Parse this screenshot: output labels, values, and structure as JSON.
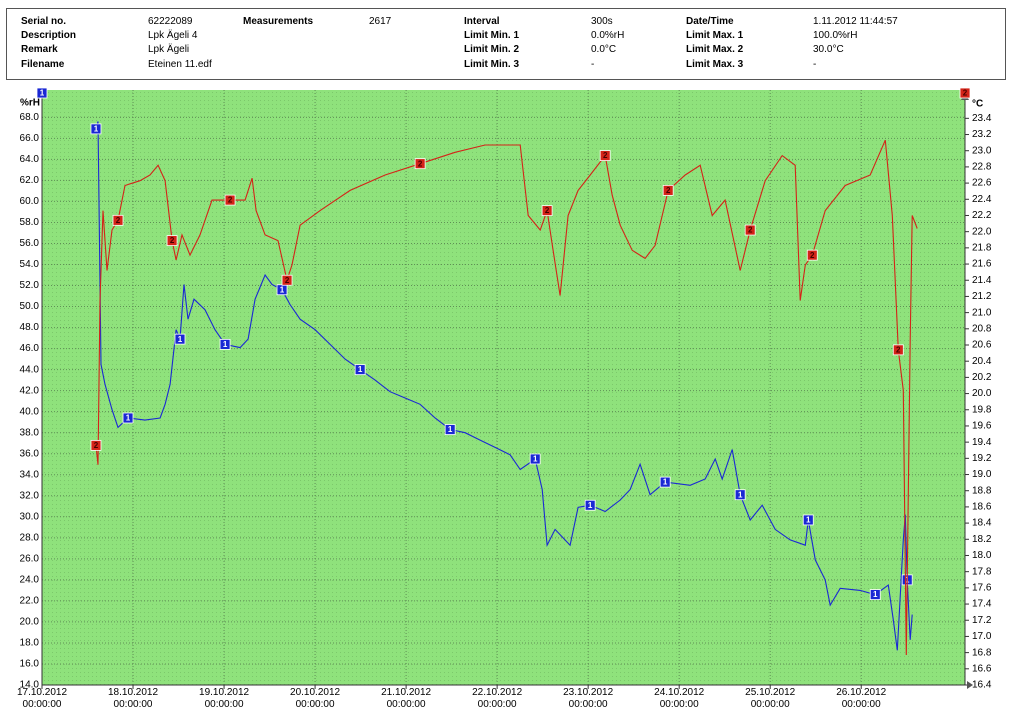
{
  "header": {
    "columns": [
      [
        {
          "label": "Serial no.",
          "value": "62222089"
        },
        {
          "label": "Description",
          "value": "Lpk Ägeli 4"
        },
        {
          "label": "Remark",
          "value": "Lpk Ägeli"
        },
        {
          "label": "Filename",
          "value": "Eteinen 11.edf"
        }
      ],
      [
        {
          "label": "Measurements",
          "value": "2617"
        }
      ],
      [
        {
          "label": "Interval",
          "value": "300s"
        },
        {
          "label": "Limit Min. 1",
          "value": "0.0%rH"
        },
        {
          "label": "Limit Min. 2",
          "value": "0.0°C"
        },
        {
          "label": "Limit Min. 3",
          "value": "-"
        }
      ],
      [
        {
          "label": "Date/Time",
          "value": "1.11.2012 11:44:57"
        },
        {
          "label": "Limit Max. 1",
          "value": "100.0%rH"
        },
        {
          "label": "Limit Max. 2",
          "value": "30.0°C"
        },
        {
          "label": "Limit Max. 3",
          "value": "-"
        }
      ]
    ]
  },
  "chart_data": {
    "type": "line",
    "ylabel": "%rH",
    "y2label": "°C",
    "grid": true,
    "xlim": [
      0,
      10.14
    ],
    "ylim": [
      14,
      70.6
    ],
    "y2lim": [
      16.4,
      23.75
    ],
    "xticks": [
      {
        "value": 0,
        "label": "17.10.2012 00:00:00"
      },
      {
        "value": 1,
        "label": "18.10.2012 00:00:00"
      },
      {
        "value": 2,
        "label": "19.10.2012 00:00:00"
      },
      {
        "value": 3,
        "label": "20.10.2012 00:00:00"
      },
      {
        "value": 4,
        "label": "21.10.2012 00:00:00"
      },
      {
        "value": 5,
        "label": "22.10.2012 00:00:00"
      },
      {
        "value": 6,
        "label": "23.10.2012 00:00:00"
      },
      {
        "value": 7,
        "label": "24.10.2012 00:00:00"
      },
      {
        "value": 8,
        "label": "25.10.2012 00:00:00"
      },
      {
        "value": 9,
        "label": "26.10.2012 00:00:00"
      }
    ],
    "yticks": [
      {
        "value": 14,
        "label": "14.0"
      },
      {
        "value": 16,
        "label": "16.0"
      },
      {
        "value": 18,
        "label": "18.0"
      },
      {
        "value": 20,
        "label": "20.0"
      },
      {
        "value": 22,
        "label": "22.0"
      },
      {
        "value": 24,
        "label": "24.0"
      },
      {
        "value": 26,
        "label": "26.0"
      },
      {
        "value": 28,
        "label": "28.0"
      },
      {
        "value": 30,
        "label": "30.0"
      },
      {
        "value": 32,
        "label": "32.0"
      },
      {
        "value": 34,
        "label": "34.0"
      },
      {
        "value": 36,
        "label": "36.0"
      },
      {
        "value": 38,
        "label": "38.0"
      },
      {
        "value": 40,
        "label": "40.0"
      },
      {
        "value": 42,
        "label": "42.0"
      },
      {
        "value": 44,
        "label": "44.0"
      },
      {
        "value": 46,
        "label": "46.0"
      },
      {
        "value": 48,
        "label": "48.0"
      },
      {
        "value": 50,
        "label": "50.0"
      },
      {
        "value": 52,
        "label": "52.0"
      },
      {
        "value": 54,
        "label": "54.0"
      },
      {
        "value": 56,
        "label": "56.0"
      },
      {
        "value": 58,
        "label": "58.0"
      },
      {
        "value": 60,
        "label": "60.0"
      },
      {
        "value": 62,
        "label": "62.0"
      },
      {
        "value": 64,
        "label": "64.0"
      },
      {
        "value": 66,
        "label": "66.0"
      },
      {
        "value": 68,
        "label": "68.0"
      }
    ],
    "y2ticks": [
      16.4,
      16.6,
      16.8,
      {
        "value": 17,
        "label": "17.0"
      },
      17.2,
      17.4,
      17.6,
      17.8,
      {
        "value": 18,
        "label": "18.0"
      },
      18.2,
      18.4,
      18.6,
      18.8,
      {
        "value": 19,
        "label": "19.0"
      },
      19.2,
      19.4,
      19.6,
      19.8,
      {
        "value": 20,
        "label": "20.0"
      },
      20.2,
      20.4,
      20.6,
      20.8,
      {
        "value": 21,
        "label": "21.0"
      },
      21.2,
      21.4,
      21.6,
      21.8,
      {
        "value": 22,
        "label": "22.0"
      },
      22.2,
      22.4,
      22.6,
      22.8,
      {
        "value": 23,
        "label": "23.0"
      },
      23.2,
      23.4
    ],
    "series": [
      {
        "name": "1",
        "color": "#1a28d4",
        "x": [
          0.593,
          0.615,
          0.648,
          0.692,
          0.769,
          0.835,
          0.945,
          1.132,
          1.297,
          1.352,
          1.407,
          1.473,
          1.516,
          1.56,
          1.604,
          1.67,
          1.791,
          1.901,
          2.011,
          2.176,
          2.264,
          2.341,
          2.451,
          2.527,
          2.637,
          2.725,
          2.835,
          3.0,
          3.165,
          3.33,
          3.495,
          3.659,
          3.824,
          3.989,
          4.154,
          4.319,
          4.484,
          4.648,
          4.813,
          4.978,
          5.143,
          5.253,
          5.418,
          5.495,
          5.549,
          5.637,
          5.802,
          5.89,
          6.022,
          6.187,
          6.352,
          6.462,
          6.571,
          6.681,
          6.846,
          7.121,
          7.286,
          7.396,
          7.473,
          7.582,
          7.67,
          7.78,
          7.912,
          8.055,
          8.22,
          8.385,
          8.418,
          8.495,
          8.604,
          8.659,
          8.769,
          8.989,
          9.154,
          9.297,
          9.352,
          9.396,
          9.462,
          9.484,
          9.505,
          9.538,
          9.56
        ],
        "values": [
          66.9,
          67.6,
          44.5,
          42.6,
          40.2,
          38.5,
          39.4,
          39.2,
          39.4,
          40.7,
          42.6,
          47.8,
          46.9,
          52.1,
          48.8,
          50.7,
          49.7,
          47.8,
          46.4,
          46.1,
          46.9,
          50.7,
          53.0,
          52.1,
          51.6,
          50.2,
          48.8,
          47.8,
          46.4,
          45.0,
          44.0,
          43.0,
          41.9,
          41.3,
          40.7,
          39.4,
          38.3,
          38.0,
          37.3,
          36.6,
          35.9,
          34.5,
          35.5,
          32.6,
          27.3,
          28.8,
          27.3,
          30.9,
          31.1,
          30.5,
          31.6,
          32.6,
          35.0,
          32.1,
          33.3,
          33.0,
          33.6,
          35.5,
          33.6,
          36.4,
          32.1,
          29.7,
          31.1,
          28.8,
          27.8,
          27.3,
          29.7,
          25.9,
          24.0,
          21.6,
          23.2,
          23.0,
          22.6,
          23.5,
          20.2,
          17.3,
          27.8,
          30.2,
          24.0,
          18.3,
          20.7
        ]
      },
      {
        "name": "2",
        "color": "#d42318",
        "axis": "y2",
        "x": [
          0.593,
          0.615,
          0.637,
          0.67,
          0.714,
          0.769,
          0.835,
          0.912,
          1.077,
          1.187,
          1.275,
          1.352,
          1.429,
          1.473,
          1.538,
          1.626,
          1.736,
          1.868,
          2.066,
          2.231,
          2.308,
          2.352,
          2.451,
          2.593,
          2.692,
          2.747,
          2.835,
          3.055,
          3.385,
          3.769,
          4.154,
          4.538,
          4.868,
          5.253,
          5.341,
          5.473,
          5.549,
          5.615,
          5.692,
          5.78,
          5.89,
          6.022,
          6.187,
          6.264,
          6.352,
          6.484,
          6.626,
          6.736,
          6.879,
          7.066,
          7.231,
          7.363,
          7.505,
          7.67,
          7.78,
          7.945,
          8.132,
          8.275,
          8.33,
          8.385,
          8.462,
          8.604,
          8.824,
          9.099,
          9.264,
          9.341,
          9.407,
          9.462,
          9.495,
          9.538,
          9.56,
          9.615
        ],
        "values": [
          19.36,
          19.12,
          21.15,
          22.26,
          21.52,
          22.02,
          22.14,
          22.57,
          22.63,
          22.7,
          22.82,
          22.63,
          21.89,
          21.65,
          21.96,
          21.71,
          21.96,
          22.39,
          22.39,
          22.39,
          22.66,
          22.26,
          21.96,
          21.89,
          21.4,
          21.59,
          22.08,
          22.26,
          22.51,
          22.7,
          22.84,
          22.98,
          23.07,
          23.07,
          22.2,
          22.02,
          22.26,
          21.77,
          21.21,
          22.2,
          22.51,
          22.7,
          22.94,
          22.45,
          22.08,
          21.77,
          21.67,
          21.83,
          22.51,
          22.7,
          22.82,
          22.2,
          22.39,
          21.52,
          22.02,
          22.63,
          22.94,
          22.82,
          21.15,
          21.59,
          21.71,
          22.26,
          22.57,
          22.7,
          23.13,
          22.2,
          20.54,
          20.04,
          16.77,
          20.66,
          22.2,
          22.04
        ]
      }
    ]
  }
}
